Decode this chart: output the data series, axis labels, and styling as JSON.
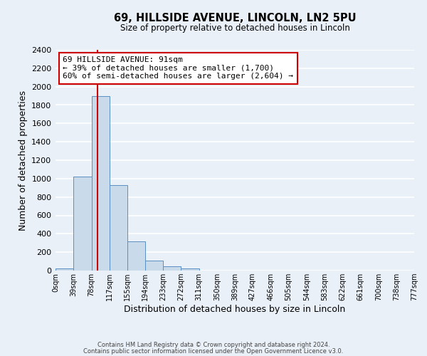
{
  "title_line1": "69, HILLSIDE AVENUE, LINCOLN, LN2 5PU",
  "title_line2": "Size of property relative to detached houses in Lincoln",
  "xlabel": "Distribution of detached houses by size in Lincoln",
  "ylabel": "Number of detached properties",
  "bar_color": "#c9daea",
  "bar_edge_color": "#5a8fc3",
  "background_color": "#eaf0f8",
  "grid_color": "#ffffff",
  "ylim": [
    0,
    2400
  ],
  "yticks": [
    0,
    200,
    400,
    600,
    800,
    1000,
    1200,
    1400,
    1600,
    1800,
    2000,
    2200,
    2400
  ],
  "bin_edges": [
    0,
    39,
    78,
    117,
    155,
    194,
    233,
    272,
    311,
    350,
    389,
    427,
    466,
    505,
    544,
    583,
    622,
    661,
    700,
    738,
    777
  ],
  "bin_labels": [
    "0sqm",
    "39sqm",
    "78sqm",
    "117sqm",
    "155sqm",
    "194sqm",
    "233sqm",
    "272sqm",
    "311sqm",
    "350sqm",
    "389sqm",
    "427sqm",
    "466sqm",
    "505sqm",
    "544sqm",
    "583sqm",
    "622sqm",
    "661sqm",
    "700sqm",
    "738sqm",
    "777sqm"
  ],
  "bar_heights": [
    20,
    1025,
    1900,
    930,
    315,
    110,
    50,
    20,
    0,
    0,
    0,
    0,
    0,
    0,
    0,
    0,
    0,
    0,
    0,
    0
  ],
  "red_line_x": 91,
  "annotation_title": "69 HILLSIDE AVENUE: 91sqm",
  "annotation_line1": "← 39% of detached houses are smaller (1,700)",
  "annotation_line2": "60% of semi-detached houses are larger (2,604) →",
  "annotation_box_color": "#ffffff",
  "annotation_box_edge": "#cc0000",
  "red_line_color": "#cc0000",
  "footer_line1": "Contains HM Land Registry data © Crown copyright and database right 2024.",
  "footer_line2": "Contains public sector information licensed under the Open Government Licence v3.0."
}
